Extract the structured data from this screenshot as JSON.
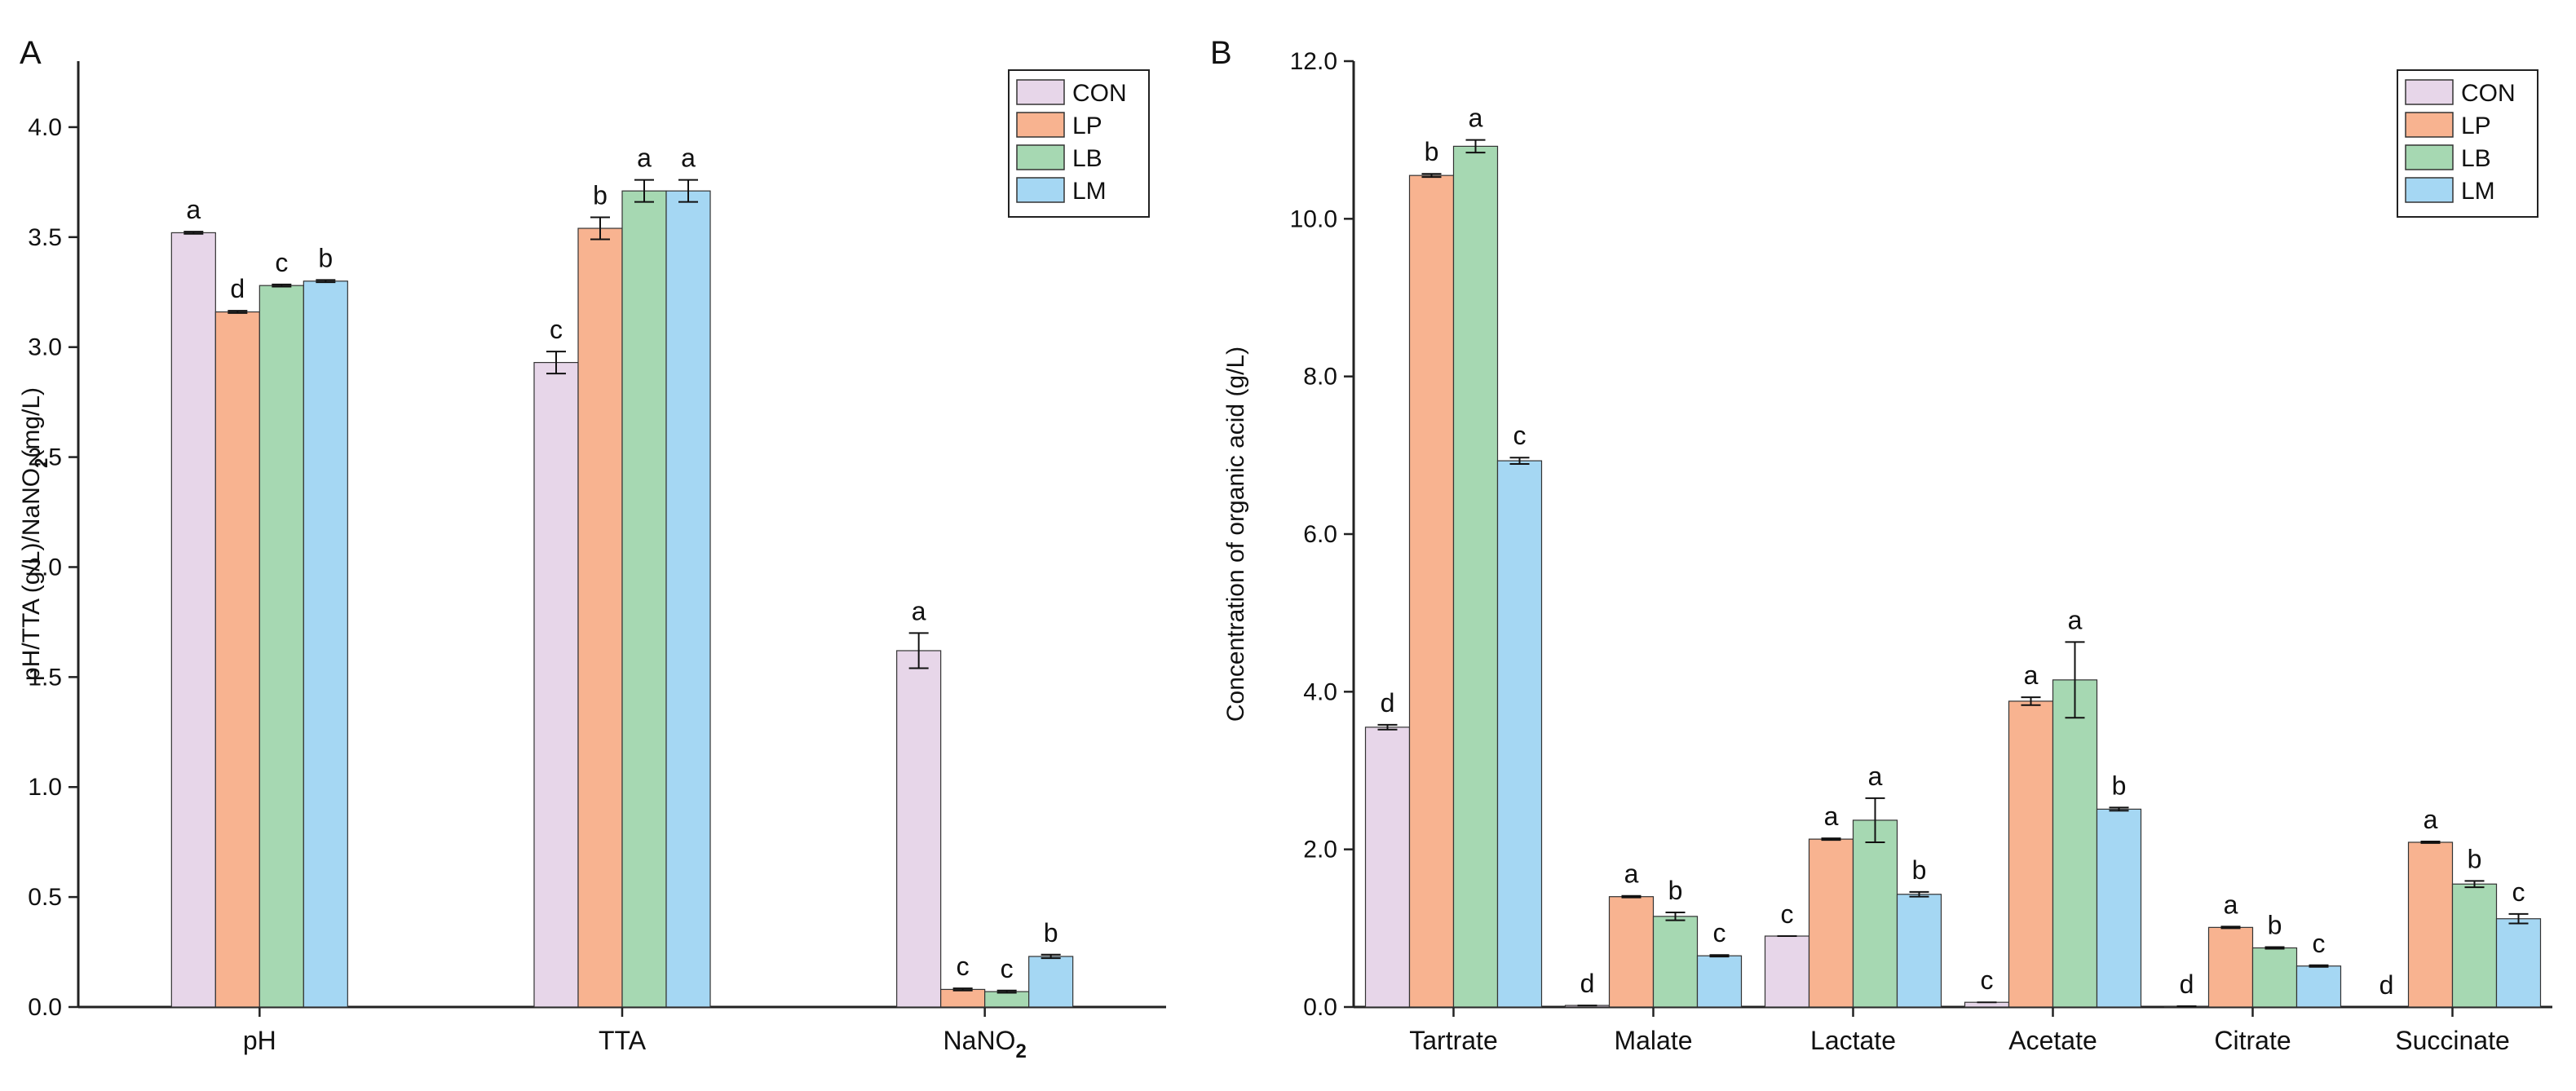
{
  "colors": {
    "CON": "#e7d6e9",
    "LP": "#f8b390",
    "LB": "#a6d8b2",
    "LM": "#a5d7f3",
    "axis": "#222222",
    "stroke": "#333333"
  },
  "chart_data": [
    {
      "panel_label": "A",
      "type": "bar",
      "title": "",
      "ylabel_parts": [
        "pH/TTA (g/L)/NaNO",
        "2",
        "(mg/L)"
      ],
      "xlabel": "",
      "ylim": [
        0,
        4.3
      ],
      "yticks": [
        0,
        0.5,
        1.0,
        1.5,
        2.0,
        2.5,
        3.0,
        3.5,
        4.0
      ],
      "ytick_labels": [
        "0.0",
        "0.5",
        "1.0",
        "1.5",
        "2.0",
        "2.5",
        "3.0",
        "3.5",
        "4.0"
      ],
      "categories": [
        {
          "main": "pH",
          "sub": ""
        },
        {
          "main": "TTA",
          "sub": ""
        },
        {
          "main": "NaNO",
          "sub": "2"
        }
      ],
      "legend": {
        "position": "top-right",
        "entries": [
          "CON",
          "LP",
          "LB",
          "LM"
        ]
      },
      "series": [
        {
          "name": "CON",
          "values": [
            3.52,
            2.93,
            1.62
          ],
          "errors": [
            0.005,
            0.05,
            0.08
          ],
          "letters": [
            "a",
            "c",
            "a"
          ]
        },
        {
          "name": "LP",
          "values": [
            3.16,
            3.54,
            0.08
          ],
          "errors": [
            0.005,
            0.05,
            0.005
          ],
          "letters": [
            "d",
            "b",
            "c"
          ]
        },
        {
          "name": "LB",
          "values": [
            3.28,
            3.71,
            0.07
          ],
          "errors": [
            0.005,
            0.05,
            0.005
          ],
          "letters": [
            "c",
            "a",
            "c"
          ]
        },
        {
          "name": "LM",
          "values": [
            3.3,
            3.71,
            0.23
          ],
          "errors": [
            0.005,
            0.05,
            0.008
          ],
          "letters": [
            "b",
            "a",
            "b"
          ]
        }
      ]
    },
    {
      "panel_label": "B",
      "type": "bar",
      "title": "",
      "ylabel_parts": [
        "Concentration of organic acid (g/L)",
        "",
        ""
      ],
      "xlabel": "",
      "ylim": [
        0,
        12
      ],
      "yticks": [
        0,
        2,
        4,
        6,
        8,
        10,
        12
      ],
      "ytick_labels": [
        "0.0",
        "2.0",
        "4.0",
        "6.0",
        "8.0",
        "10.0",
        "12.0"
      ],
      "categories": [
        {
          "main": "Tartrate",
          "sub": ""
        },
        {
          "main": "Malate",
          "sub": ""
        },
        {
          "main": "Lactate",
          "sub": ""
        },
        {
          "main": "Acetate",
          "sub": ""
        },
        {
          "main": "Citrate",
          "sub": ""
        },
        {
          "main": "Succinate",
          "sub": ""
        }
      ],
      "legend": {
        "position": "top-right",
        "entries": [
          "CON",
          "LP",
          "LB",
          "LM"
        ]
      },
      "series": [
        {
          "name": "CON",
          "values": [
            3.55,
            0.02,
            0.9,
            0.06,
            0.01,
            0.0
          ],
          "errors": [
            0.03,
            0.0,
            0.0,
            0.0,
            0.0,
            0.0
          ],
          "letters": [
            "d",
            "d",
            "c",
            "c",
            "d",
            "d"
          ]
        },
        {
          "name": "LP",
          "values": [
            10.55,
            1.4,
            2.13,
            3.88,
            1.01,
            2.09
          ],
          "errors": [
            0.02,
            0.01,
            0.01,
            0.05,
            0.01,
            0.01
          ],
          "letters": [
            "b",
            "a",
            "a",
            "a",
            "a",
            "a"
          ]
        },
        {
          "name": "LB",
          "values": [
            10.92,
            1.15,
            2.37,
            4.15,
            0.75,
            1.56
          ],
          "errors": [
            0.08,
            0.05,
            0.28,
            0.48,
            0.01,
            0.04
          ],
          "letters": [
            "a",
            "b",
            "a",
            "a",
            "b",
            "b"
          ]
        },
        {
          "name": "LM",
          "values": [
            6.93,
            0.65,
            1.43,
            2.51,
            0.52,
            1.12
          ],
          "errors": [
            0.04,
            0.01,
            0.03,
            0.02,
            0.01,
            0.06
          ],
          "letters": [
            "c",
            "c",
            "b",
            "b",
            "c",
            "c"
          ]
        }
      ]
    }
  ]
}
